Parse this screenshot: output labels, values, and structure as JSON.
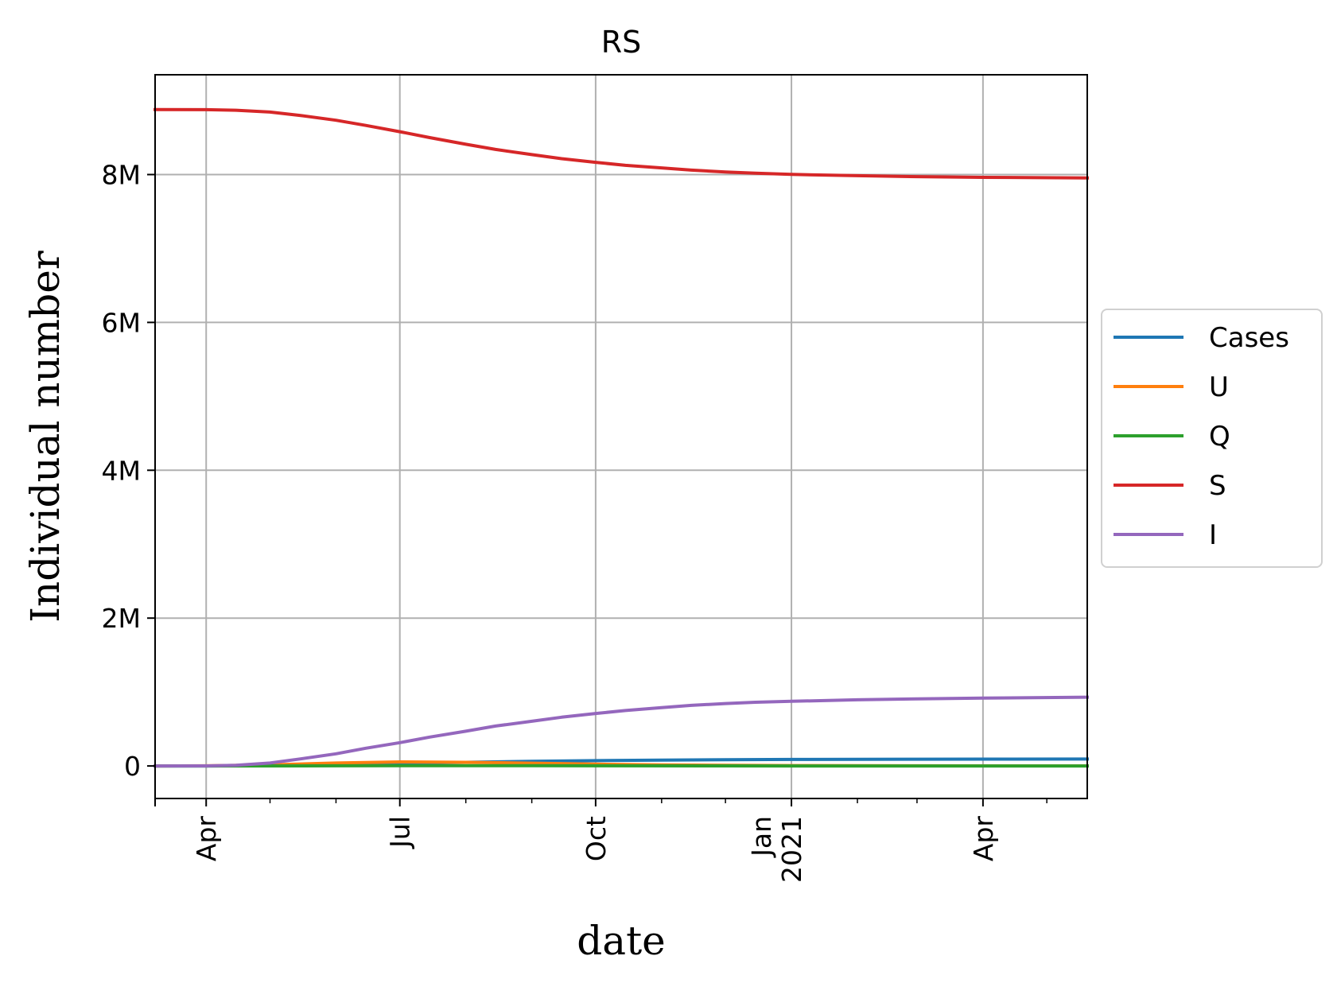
{
  "chart_data": {
    "type": "line",
    "title": "RS",
    "xlabel": "date",
    "ylabel": "Individual number",
    "x_range": [
      "2020-03-08",
      "2021-05-20"
    ],
    "y_range": [
      -440000,
      9350000
    ],
    "grid": true,
    "legend_position": "center-right outside",
    "x_ticks": [
      {
        "date": "2020-04-01",
        "lines": [
          "Apr"
        ]
      },
      {
        "date": "2020-07-01",
        "lines": [
          "Jul"
        ]
      },
      {
        "date": "2020-10-01",
        "lines": [
          "Oct"
        ]
      },
      {
        "date": "2021-01-01",
        "lines": [
          "Jan",
          "2021"
        ]
      },
      {
        "date": "2021-04-01",
        "lines": [
          "Apr"
        ]
      }
    ],
    "x_minor_ticks": [
      "2020-05-01",
      "2020-06-01",
      "2020-08-01",
      "2020-09-01",
      "2020-11-01",
      "2020-12-01",
      "2021-02-01",
      "2021-03-01",
      "2021-05-01"
    ],
    "y_ticks": [
      {
        "value": 0,
        "label": "0"
      },
      {
        "value": 2000000,
        "label": "2M"
      },
      {
        "value": 4000000,
        "label": "4M"
      },
      {
        "value": 6000000,
        "label": "6M"
      },
      {
        "value": 8000000,
        "label": "8M"
      }
    ],
    "series": [
      {
        "name": "Cases",
        "color": "#1f77b4",
        "points": [
          [
            "2020-03-08",
            0
          ],
          [
            "2020-04-01",
            500
          ],
          [
            "2020-05-01",
            5000
          ],
          [
            "2020-06-01",
            18000
          ],
          [
            "2020-07-01",
            35000
          ],
          [
            "2020-08-01",
            50000
          ],
          [
            "2020-09-01",
            62000
          ],
          [
            "2020-10-01",
            72000
          ],
          [
            "2020-11-01",
            80000
          ],
          [
            "2020-12-01",
            85000
          ],
          [
            "2021-01-01",
            88000
          ],
          [
            "2021-02-01",
            90000
          ],
          [
            "2021-03-01",
            91500
          ],
          [
            "2021-04-01",
            92500
          ],
          [
            "2021-05-20",
            93500
          ]
        ]
      },
      {
        "name": "U",
        "color": "#ff7f0e",
        "points": [
          [
            "2020-03-08",
            0
          ],
          [
            "2020-04-01",
            2000
          ],
          [
            "2020-05-01",
            15000
          ],
          [
            "2020-06-01",
            40000
          ],
          [
            "2020-07-01",
            55000
          ],
          [
            "2020-08-01",
            50000
          ],
          [
            "2020-09-01",
            38000
          ],
          [
            "2020-10-01",
            25000
          ],
          [
            "2020-11-01",
            15000
          ],
          [
            "2020-12-01",
            9000
          ],
          [
            "2021-01-01",
            5000
          ],
          [
            "2021-03-01",
            2000
          ],
          [
            "2021-05-20",
            800
          ]
        ]
      },
      {
        "name": "Q",
        "color": "#2ca02c",
        "points": [
          [
            "2020-03-08",
            0
          ],
          [
            "2020-04-01",
            100
          ],
          [
            "2020-06-01",
            2500
          ],
          [
            "2020-07-01",
            4000
          ],
          [
            "2020-08-01",
            4500
          ],
          [
            "2020-09-01",
            3500
          ],
          [
            "2020-10-01",
            2500
          ],
          [
            "2020-12-01",
            1000
          ],
          [
            "2021-02-01",
            400
          ],
          [
            "2021-05-20",
            100
          ]
        ]
      },
      {
        "name": "S",
        "color": "#d62728",
        "points": [
          [
            "2020-03-08",
            8880000
          ],
          [
            "2020-04-01",
            8878000
          ],
          [
            "2020-04-15",
            8870000
          ],
          [
            "2020-05-01",
            8845000
          ],
          [
            "2020-05-15",
            8800000
          ],
          [
            "2020-06-01",
            8735000
          ],
          [
            "2020-06-15",
            8665000
          ],
          [
            "2020-07-01",
            8580000
          ],
          [
            "2020-07-15",
            8500000
          ],
          [
            "2020-08-01",
            8410000
          ],
          [
            "2020-08-15",
            8340000
          ],
          [
            "2020-09-01",
            8270000
          ],
          [
            "2020-09-15",
            8215000
          ],
          [
            "2020-10-01",
            8165000
          ],
          [
            "2020-10-15",
            8125000
          ],
          [
            "2020-11-01",
            8090000
          ],
          [
            "2020-11-15",
            8060000
          ],
          [
            "2020-12-01",
            8035000
          ],
          [
            "2020-12-15",
            8018000
          ],
          [
            "2021-01-01",
            8002000
          ],
          [
            "2021-02-01",
            7985000
          ],
          [
            "2021-03-01",
            7972000
          ],
          [
            "2021-04-01",
            7962000
          ],
          [
            "2021-05-20",
            7955000
          ]
        ]
      },
      {
        "name": "I",
        "color": "#9467bd",
        "points": [
          [
            "2020-03-08",
            0
          ],
          [
            "2020-04-01",
            1000
          ],
          [
            "2020-04-15",
            10000
          ],
          [
            "2020-05-01",
            40000
          ],
          [
            "2020-05-15",
            95000
          ],
          [
            "2020-06-01",
            165000
          ],
          [
            "2020-06-15",
            240000
          ],
          [
            "2020-07-01",
            315000
          ],
          [
            "2020-07-15",
            390000
          ],
          [
            "2020-08-01",
            470000
          ],
          [
            "2020-08-15",
            540000
          ],
          [
            "2020-09-01",
            605000
          ],
          [
            "2020-09-15",
            660000
          ],
          [
            "2020-10-01",
            710000
          ],
          [
            "2020-10-15",
            750000
          ],
          [
            "2020-11-01",
            790000
          ],
          [
            "2020-11-15",
            820000
          ],
          [
            "2020-12-01",
            845000
          ],
          [
            "2020-12-15",
            862000
          ],
          [
            "2021-01-01",
            875000
          ],
          [
            "2021-02-01",
            895000
          ],
          [
            "2021-03-01",
            908000
          ],
          [
            "2021-04-01",
            918000
          ],
          [
            "2021-05-20",
            930000
          ]
        ]
      }
    ]
  }
}
